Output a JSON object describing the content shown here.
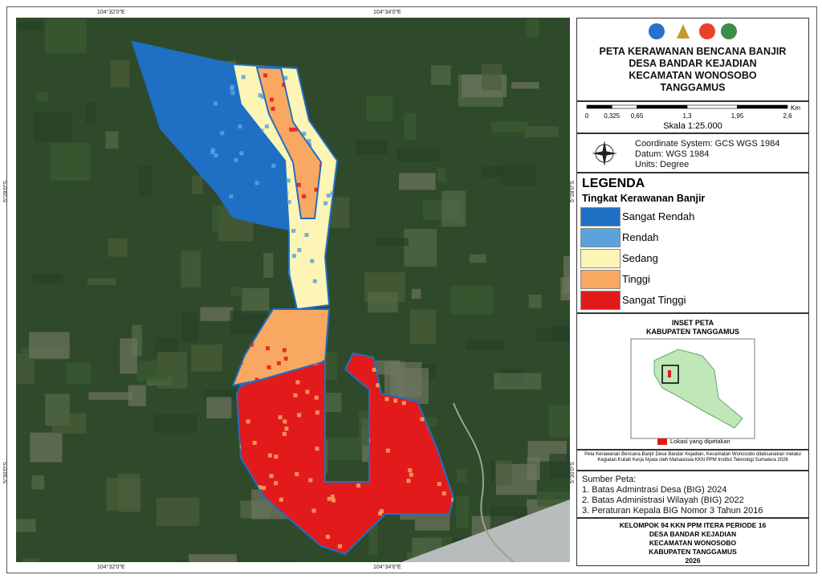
{
  "map": {
    "coords": {
      "top": [
        "104°32'0\"E",
        "104°34'0\"E"
      ],
      "bottom": [
        "104°32'0\"E",
        "104°34'0\"E"
      ],
      "left": [
        "5°28'0\"S",
        "5°30'0\"S"
      ],
      "right": [
        "5°28'0\"S",
        "5°30'0\"S"
      ]
    }
  },
  "title": [
    "PETA KERAWANAN BENCANA BANJIR",
    "DESA BANDAR KEJADIAN",
    "KECAMATAN WONOSOBO",
    "TANGGAMUS"
  ],
  "scale": {
    "ticks": [
      "0",
      "0,325",
      "0,65",
      "1,3",
      "1,95",
      "2,6"
    ],
    "unit": "Km",
    "text": "Skala 1:25.000"
  },
  "crs": [
    "Coordinate System: GCS WGS 1984",
    "Datum: WGS 1984",
    "Units: Degree"
  ],
  "legend": {
    "title": "LEGENDA",
    "subtitle": "Tingkat Kerawanan Banjir",
    "items": [
      {
        "label": "Sangat Rendah",
        "color": "#1f6fc5"
      },
      {
        "label": "Rendah",
        "color": "#5ba3dd"
      },
      {
        "label": "Sedang",
        "color": "#fdf5b5"
      },
      {
        "label": "Tinggi",
        "color": "#f9a862"
      },
      {
        "label": "Sangat Tinggi",
        "color": "#e31a1c"
      }
    ]
  },
  "inset": {
    "title": [
      "INSET PETA",
      "KABUPATEN TANGGAMUS"
    ],
    "caption": "Lokasi yang dipetakan"
  },
  "note": "Peta Kerawanan Bencana Banjir Desa Bandar Kejadian, Kecamatan Wonosobo dilaksanakan melalui Kegiatan Kuliah Kerja Nyata oleh Mahasiswa KKN PPM Institut Teknologi Sumatera 2026",
  "sources": {
    "title": "Sumber Peta:",
    "items": [
      "1. Batas Admintrasi Desa (BIG) 2024",
      "2. Batas Administrasi Wilayah (BIG) 2022",
      "3. Peraturan Kepala BIG Nomor 3 Tahun 2016"
    ]
  },
  "footer": [
    "KELOMPOK 94 KKN PPM ITERA PERIODE 16",
    "DESA BANDAR KEJADIAN",
    "KECAMATAN WONOSOBO",
    "KABUPATEN TANGGAMUS",
    "2026"
  ]
}
